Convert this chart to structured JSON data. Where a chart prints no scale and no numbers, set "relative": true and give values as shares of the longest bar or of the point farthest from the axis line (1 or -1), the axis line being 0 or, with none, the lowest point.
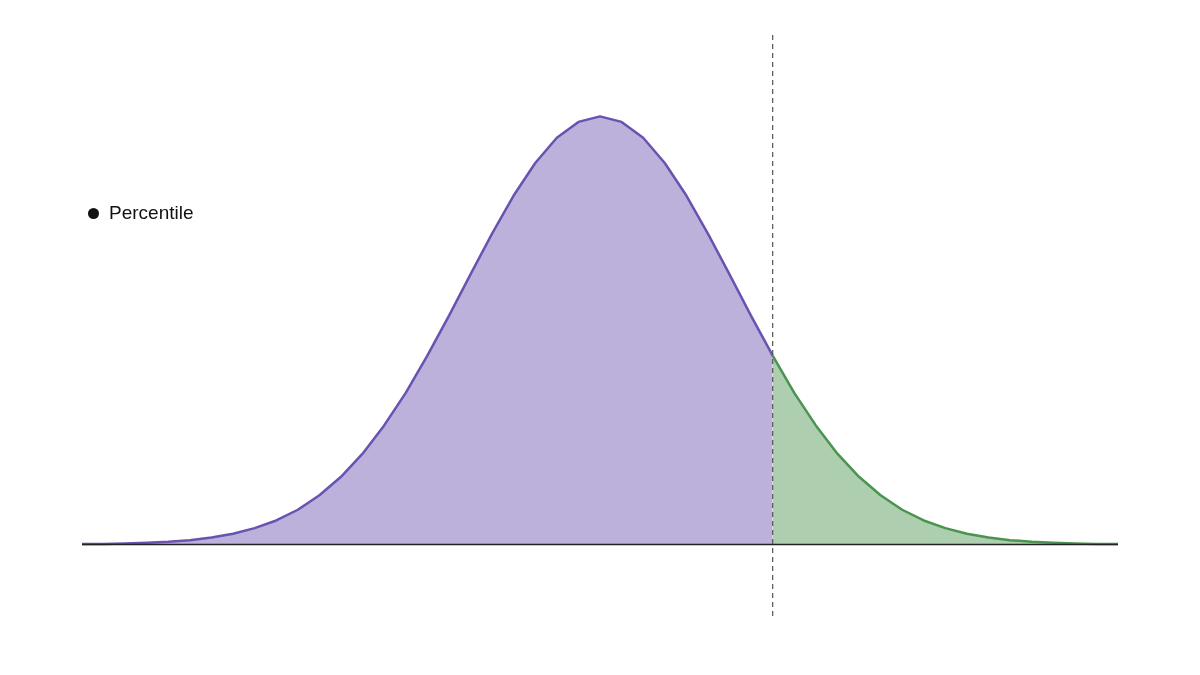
{
  "chart_data": {
    "type": "area",
    "relative": true,
    "categories": [
      null,
      null,
      null,
      null,
      null,
      null,
      null,
      null,
      null,
      null,
      null,
      null,
      null,
      null,
      null,
      null,
      null,
      null,
      null,
      null,
      null,
      null,
      null,
      null,
      null,
      null,
      null,
      null,
      null,
      null,
      null,
      null,
      null,
      null,
      null,
      null,
      null,
      null,
      null,
      null,
      null,
      null,
      null,
      null,
      null,
      null,
      null,
      null,
      null
    ],
    "series": [
      {
        "color": "#6a52b0",
        "values": [
          0.001,
          0.001,
          0.002,
          0.004,
          0.006,
          0.01,
          0.016,
          0.025,
          0.038,
          0.056,
          0.081,
          0.115,
          0.158,
          0.212,
          0.278,
          0.354,
          0.441,
          0.534,
          0.631,
          0.726,
          0.815,
          0.891,
          0.95,
          0.987,
          1,
          0.987,
          0.95,
          0.891,
          0.815,
          0.726,
          0.631,
          0.534,
          0.441,
          null,
          null,
          null,
          null,
          null,
          null,
          null,
          null,
          null,
          null,
          null,
          null,
          null,
          null,
          null,
          null
        ]
      },
      {
        "color": "#4a944f",
        "values": [
          null,
          null,
          null,
          null,
          null,
          null,
          null,
          null,
          null,
          null,
          null,
          null,
          null,
          null,
          null,
          null,
          null,
          null,
          null,
          null,
          null,
          null,
          null,
          null,
          null,
          null,
          null,
          null,
          null,
          null,
          null,
          null,
          0.441,
          0.354,
          0.278,
          0.212,
          0.158,
          0.115,
          0.081,
          0.056,
          0.038,
          0.025,
          0.016,
          0.01,
          0.006,
          0.004,
          0.002,
          0.001,
          0.001
        ]
      }
    ],
    "ref_lines": [
      {
        "axis": "x",
        "line_style": "dashed",
        "color": "#555555"
      }
    ],
    "annotations": [
      "Percentile"
    ]
  }
}
